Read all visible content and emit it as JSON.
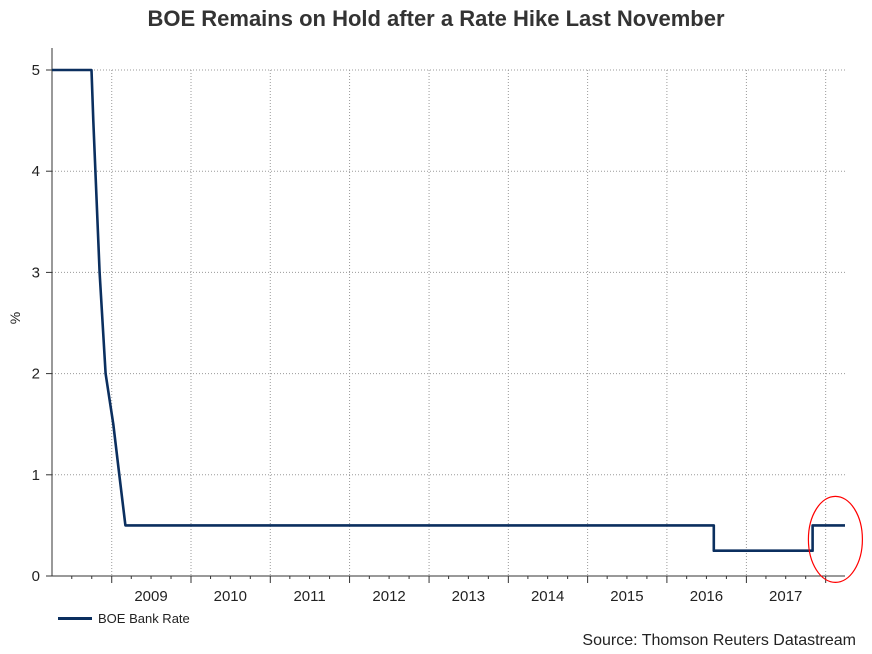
{
  "chart_data": {
    "type": "line",
    "title": "BOE Remains on Hold after a Rate Hike Last November",
    "ylabel": "%",
    "xlabel": "",
    "ylim": [
      0,
      5
    ],
    "yticks": [
      0,
      1,
      2,
      3,
      4,
      5
    ],
    "xlim": [
      "2008-04-01",
      "2018-03-31"
    ],
    "xticks": [
      "2009",
      "2010",
      "2011",
      "2012",
      "2013",
      "2014",
      "2015",
      "2016",
      "2017"
    ],
    "grid": true,
    "legend_position": "bottom-left",
    "series": [
      {
        "name": "BOE Bank Rate",
        "color": "#0b2f5f",
        "points": [
          [
            "2008-04-01",
            5.0
          ],
          [
            "2008-09-30",
            5.0
          ],
          [
            "2008-10-08",
            4.5
          ],
          [
            "2008-11-06",
            3.0
          ],
          [
            "2008-12-04",
            2.0
          ],
          [
            "2009-01-08",
            1.5
          ],
          [
            "2009-02-05",
            1.0
          ],
          [
            "2009-03-05",
            0.5
          ],
          [
            "2016-08-04",
            0.5
          ],
          [
            "2016-08-04",
            0.25
          ],
          [
            "2017-11-02",
            0.25
          ],
          [
            "2017-11-02",
            0.5
          ],
          [
            "2018-03-31",
            0.5
          ]
        ]
      }
    ],
    "annotations": [
      {
        "type": "circle",
        "color": "#ff0000",
        "at": "2018-02"
      }
    ]
  },
  "source": "Source: Thomson Reuters Datastream"
}
